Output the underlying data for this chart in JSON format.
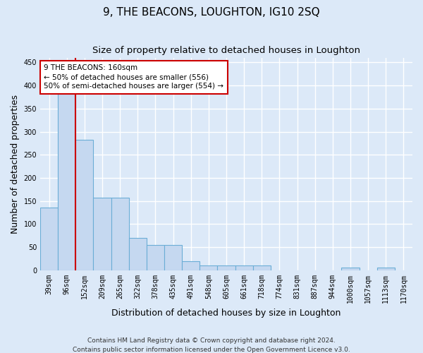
{
  "title": "9, THE BEACONS, LOUGHTON, IG10 2SQ",
  "subtitle": "Size of property relative to detached houses in Loughton",
  "xlabel": "Distribution of detached houses by size in Loughton",
  "ylabel": "Number of detached properties",
  "footer_line1": "Contains HM Land Registry data © Crown copyright and database right 2024.",
  "footer_line2": "Contains public sector information licensed under the Open Government Licence v3.0.",
  "categories": [
    "39sqm",
    "96sqm",
    "152sqm",
    "209sqm",
    "265sqm",
    "322sqm",
    "378sqm",
    "435sqm",
    "491sqm",
    "548sqm",
    "605sqm",
    "661sqm",
    "718sqm",
    "774sqm",
    "831sqm",
    "887sqm",
    "944sqm",
    "1000sqm",
    "1057sqm",
    "1113sqm",
    "1170sqm"
  ],
  "values": [
    135,
    390,
    283,
    157,
    157,
    70,
    55,
    55,
    20,
    10,
    10,
    10,
    10,
    0,
    0,
    0,
    0,
    5,
    0,
    5,
    0
  ],
  "bar_color": "#c5d8f0",
  "bar_edge_color": "#6baed6",
  "red_line_index": 2,
  "annotation_line1": "9 THE BEACONS: 160sqm",
  "annotation_line2": "← 50% of detached houses are smaller (556)",
  "annotation_line3": "50% of semi-detached houses are larger (554) →",
  "annotation_box_facecolor": "#ffffff",
  "annotation_box_edgecolor": "#cc0000",
  "ylim": [
    0,
    460
  ],
  "yticks": [
    0,
    50,
    100,
    150,
    200,
    250,
    300,
    350,
    400,
    450
  ],
  "bg_color": "#dce9f8",
  "plot_bg_color": "#dce9f8",
  "grid_color": "#ffffff",
  "title_fontsize": 11,
  "subtitle_fontsize": 9.5,
  "axis_label_fontsize": 9,
  "tick_fontsize": 7,
  "footer_fontsize": 6.5
}
